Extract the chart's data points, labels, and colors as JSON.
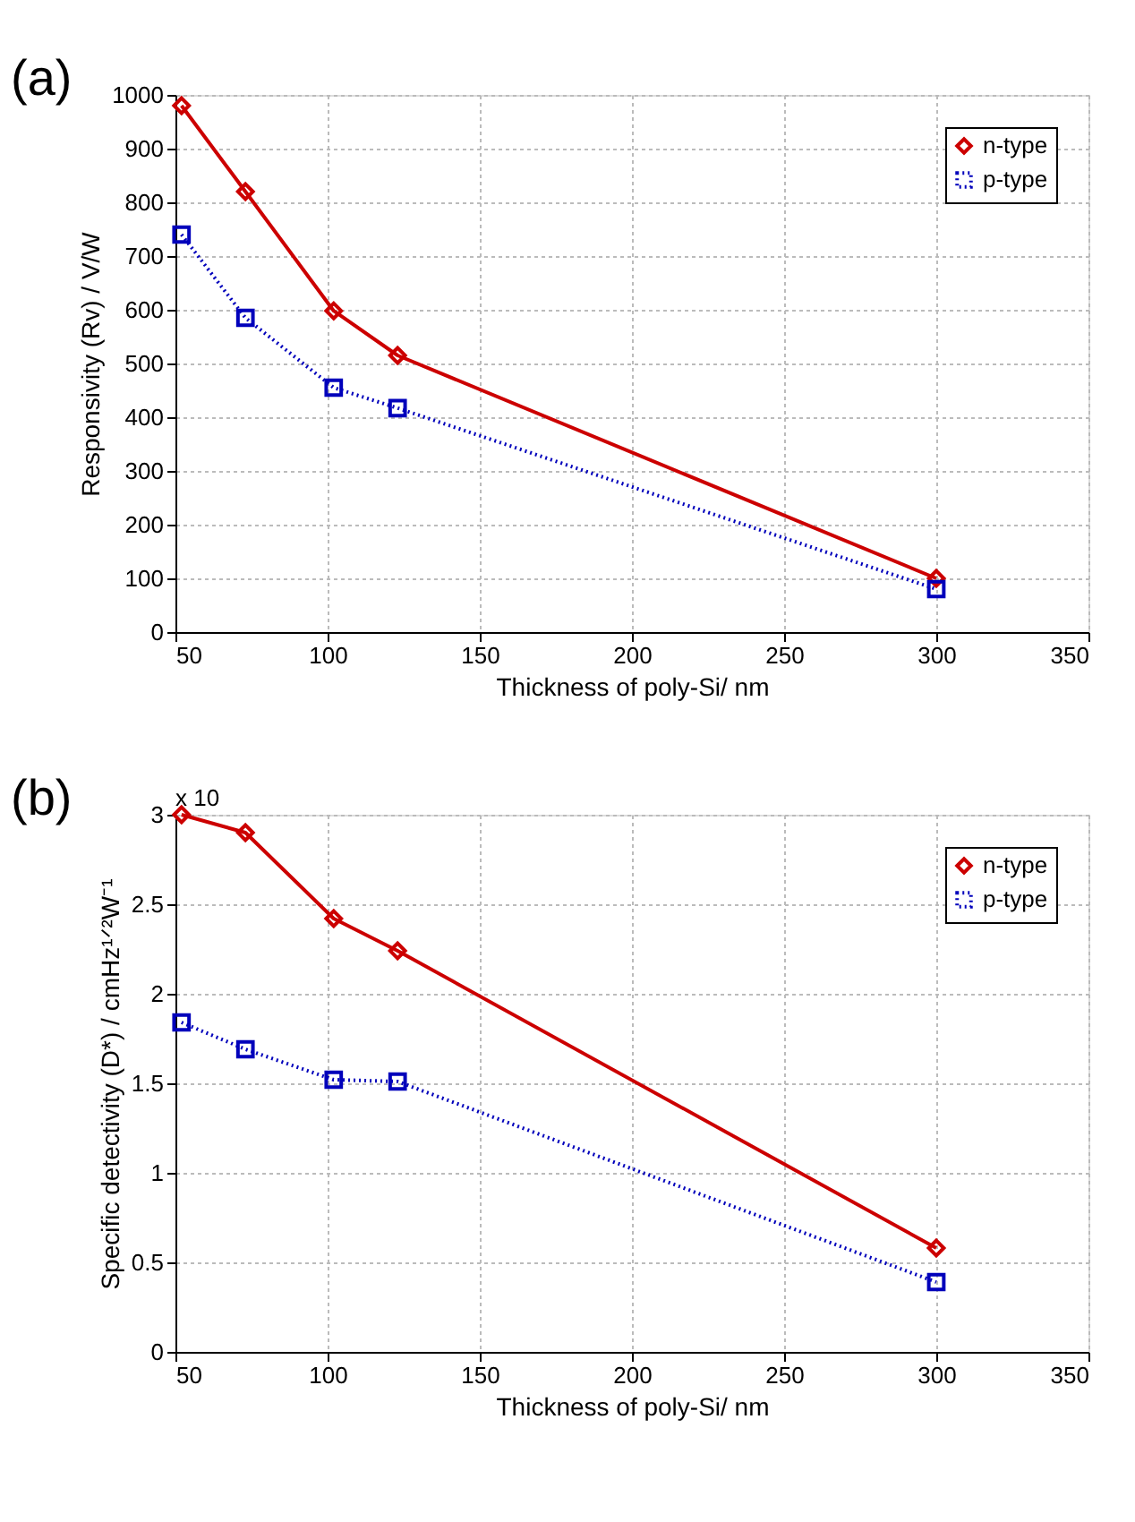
{
  "chart_data": [
    {
      "type": "line",
      "xlabel": "Thickness of poly-Si/ nm",
      "ylabel": "Responsivity (Rv)    /    V/W",
      "x": [
        52,
        73,
        102,
        123,
        300
      ],
      "xlim": [
        50,
        350
      ],
      "xticks": [
        50,
        100,
        150,
        200,
        250,
        300,
        350
      ],
      "ylim": [
        0,
        1000
      ],
      "yticks": [
        0,
        100,
        200,
        300,
        400,
        500,
        600,
        700,
        800,
        900,
        1000
      ],
      "grid": true,
      "legend": "top right",
      "annotations": [
        "(a)"
      ],
      "series": [
        {
          "name": "n-type",
          "color": "#cc0000",
          "marker": "diamond",
          "line_style": "solid",
          "values": [
            980,
            820,
            598,
            515,
            100
          ]
        },
        {
          "name": "p-type",
          "color": "#0000bb",
          "marker": "square",
          "line_style": "dotted",
          "values": [
            740,
            585,
            455,
            417,
            80
          ]
        }
      ]
    },
    {
      "type": "line",
      "xlabel": "Thickness of poly-Si/ nm",
      "ylabel": "Specific detectivity (D*)   /   cmHz¹ᐟ²W⁻¹",
      "x": [
        52,
        73,
        102,
        123,
        300
      ],
      "xlim": [
        50,
        350
      ],
      "xticks": [
        50,
        100,
        150,
        200,
        250,
        300,
        350
      ],
      "ylim": [
        0,
        3
      ],
      "yticks": [
        0,
        0.5,
        1,
        1.5,
        2,
        2.5,
        3
      ],
      "grid": true,
      "legend": "top right",
      "annotations": [
        "(b)",
        "x 10"
      ],
      "series": [
        {
          "name": "n-type",
          "color": "#cc0000",
          "marker": "diamond",
          "line_style": "solid",
          "values": [
            3.0,
            2.9,
            2.42,
            2.24,
            0.58
          ]
        },
        {
          "name": "p-type",
          "color": "#0000bb",
          "marker": "square",
          "line_style": "dotted",
          "values": [
            1.84,
            1.69,
            1.52,
            1.51,
            0.39
          ]
        }
      ]
    }
  ]
}
